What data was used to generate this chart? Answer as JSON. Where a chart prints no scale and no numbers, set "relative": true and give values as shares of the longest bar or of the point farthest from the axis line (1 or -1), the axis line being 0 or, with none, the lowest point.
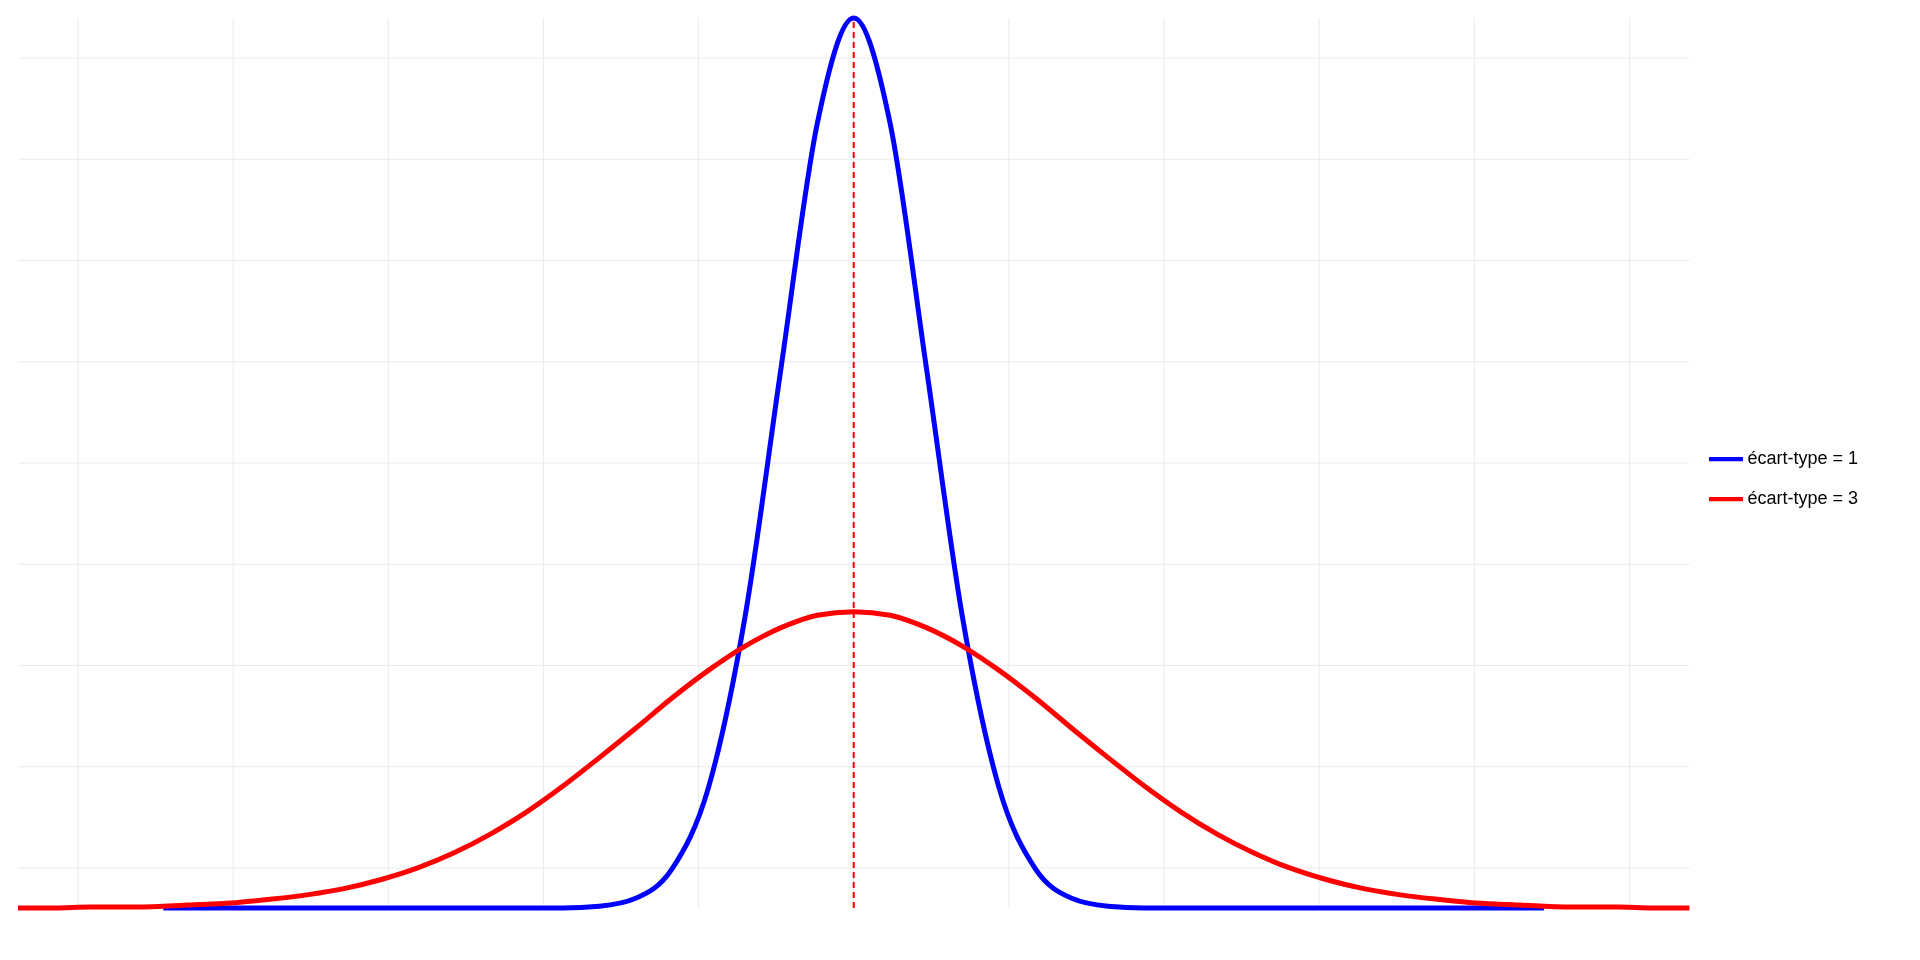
{
  "chart_data": {
    "type": "line",
    "relative": true,
    "grid": true,
    "legend": "right",
    "line_style": "solid",
    "marker": "none",
    "categories": [
      null,
      null,
      null,
      null,
      null,
      null,
      null,
      null,
      null,
      null,
      null,
      null,
      null,
      null,
      null,
      null,
      null,
      null,
      null,
      null,
      null,
      null,
      null,
      null,
      null,
      null,
      null,
      null,
      null,
      null,
      null,
      null,
      null,
      null,
      null,
      null,
      null,
      null,
      null,
      null,
      null,
      null,
      null,
      null,
      null,
      null,
      null
    ],
    "series": [
      {
        "name": "écart-type = 1",
        "color": "#0000ff",
        "values": [
          null,
          null,
          null,
          null,
          0,
          0,
          0,
          0,
          0,
          0,
          0,
          0,
          0,
          0,
          0,
          0,
          0.002,
          0.011,
          0.044,
          0.135,
          0.325,
          0.607,
          0.882,
          1,
          0.882,
          0.607,
          0.325,
          0.135,
          0.044,
          0.011,
          0.002,
          0,
          0,
          0,
          0,
          0,
          0,
          0,
          0,
          0,
          0,
          0,
          0,
          null,
          null,
          null,
          null
        ]
      },
      {
        "name": "écart-type = 3",
        "color": "#ff0000",
        "values": [
          0,
          0,
          0.001,
          0.001,
          0.002,
          0.004,
          0.006,
          0.01,
          0.015,
          0.022,
          0.032,
          0.045,
          0.062,
          0.083,
          0.108,
          0.137,
          0.169,
          0.202,
          0.236,
          0.267,
          0.294,
          0.315,
          0.329,
          0.333,
          0.329,
          0.315,
          0.294,
          0.267,
          0.236,
          0.202,
          0.169,
          0.137,
          0.108,
          0.083,
          0.062,
          0.045,
          0.032,
          0.022,
          0.015,
          0.01,
          0.006,
          0.004,
          0.002,
          0.001,
          0.001,
          0,
          0
        ]
      }
    ]
  }
}
